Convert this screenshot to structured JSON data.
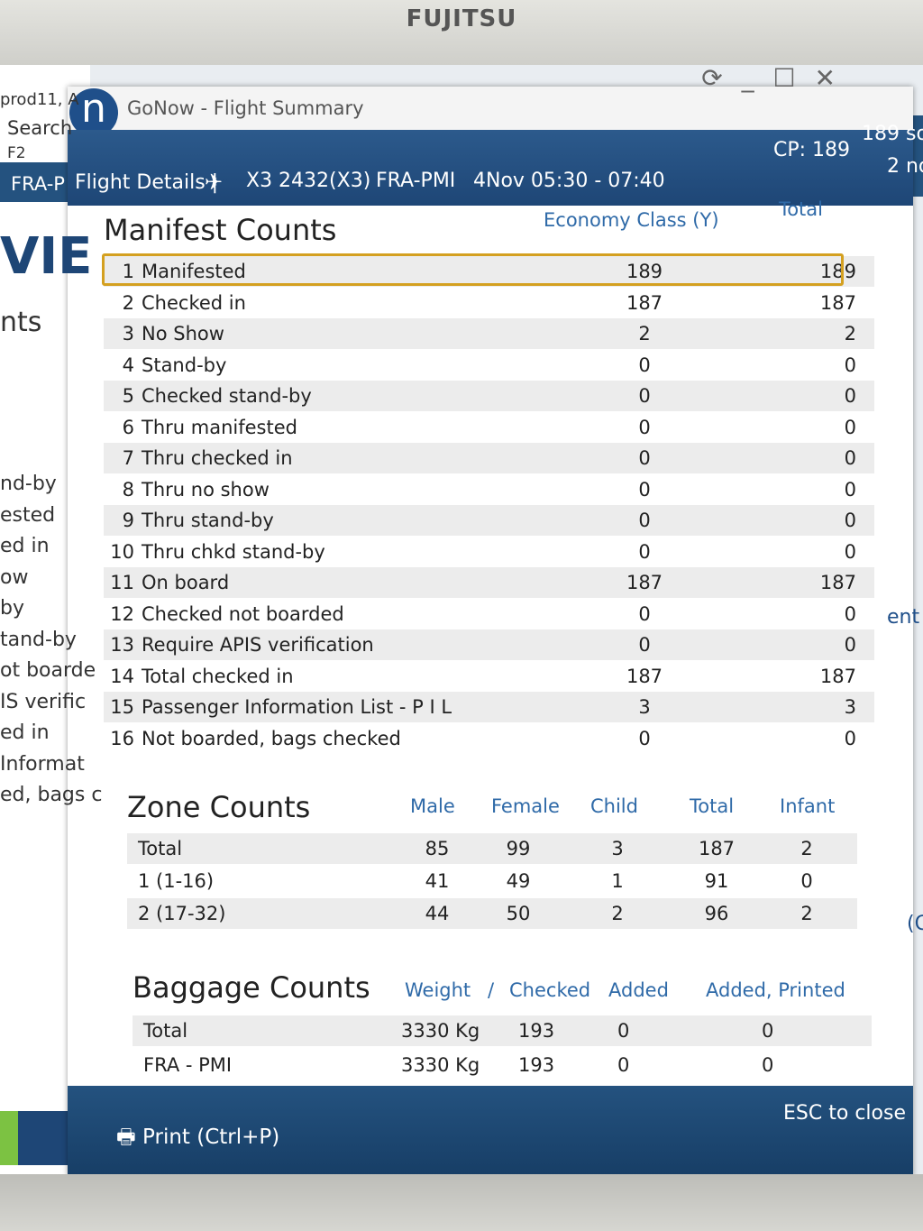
{
  "monitor": {
    "brand": "FUJITSU"
  },
  "background_app": {
    "left_texts": [
      "prod11, A",
      "Search",
      "F2",
      "FRA-P",
      "VIE",
      "nts"
    ],
    "left_list": [
      "nd-by",
      "ested",
      "ed in",
      "ow",
      "by",
      "tand-by",
      "ot boarde",
      "IS verific",
      "ed in",
      "Informat",
      "ed, bags c"
    ],
    "right_texts": [
      "189 so",
      "2 no",
      "ent",
      "(C"
    ]
  },
  "window": {
    "logo": "n",
    "title": "GoNow - Flight Summary",
    "header": {
      "section": "Flight Details |",
      "flight": "X3 2432(X3)",
      "route": "FRA-PMI",
      "time": "4Nov 05:30 - 07:40",
      "cp": "CP: 189"
    },
    "manifest": {
      "title": "Manifest Counts",
      "columns": [
        "Economy Class (Y)",
        "Total"
      ],
      "rows": [
        {
          "no": "1",
          "label": "Manifested",
          "values": [
            189,
            189
          ]
        },
        {
          "no": "2",
          "label": "Checked in",
          "values": [
            187,
            187
          ]
        },
        {
          "no": "3",
          "label": "No Show",
          "values": [
            2,
            2
          ]
        },
        {
          "no": "4",
          "label": "Stand-by",
          "values": [
            0,
            0
          ]
        },
        {
          "no": "5",
          "label": "Checked stand-by",
          "values": [
            0,
            0
          ]
        },
        {
          "no": "6",
          "label": "Thru manifested",
          "values": [
            0,
            0
          ]
        },
        {
          "no": "7",
          "label": "Thru checked in",
          "values": [
            0,
            0
          ]
        },
        {
          "no": "8",
          "label": "Thru no show",
          "values": [
            0,
            0
          ]
        },
        {
          "no": "9",
          "label": "Thru stand-by",
          "values": [
            0,
            0
          ]
        },
        {
          "no": "10",
          "label": "Thru chkd stand-by",
          "values": [
            0,
            0
          ]
        },
        {
          "no": "11",
          "label": "On board",
          "values": [
            187,
            187
          ]
        },
        {
          "no": "12",
          "label": "Checked not boarded",
          "values": [
            0,
            0
          ]
        },
        {
          "no": "13",
          "label": "Require APIS verification",
          "values": [
            0,
            0
          ]
        },
        {
          "no": "14",
          "label": "Total checked in",
          "values": [
            187,
            187
          ]
        },
        {
          "no": "15",
          "label": "Passenger Information List - P I L",
          "values": [
            3,
            3
          ]
        },
        {
          "no": "16",
          "label": "Not boarded, bags checked",
          "values": [
            0,
            0
          ]
        }
      ]
    },
    "zones": {
      "title": "Zone Counts",
      "columns": [
        "Male",
        "Female",
        "Child",
        "Total",
        "Infant"
      ],
      "rows": [
        {
          "label": "Total",
          "values": [
            85,
            99,
            3,
            187,
            2
          ]
        },
        {
          "label": "1 (1-16)",
          "values": [
            41,
            49,
            1,
            91,
            0
          ]
        },
        {
          "label": "2 (17-32)",
          "values": [
            44,
            50,
            2,
            96,
            2
          ]
        }
      ]
    },
    "baggage": {
      "title": "Baggage Counts",
      "columns": [
        "Weight",
        "/",
        "Checked",
        "Added",
        "Added, Printed"
      ],
      "rows": [
        {
          "label": "Total",
          "values": [
            "3330 Kg",
            193,
            0,
            0
          ]
        },
        {
          "label": "FRA - PMI",
          "values": [
            "3330 Kg",
            193,
            0,
            0
          ]
        }
      ]
    },
    "footer": {
      "print": "Print (Ctrl+P)",
      "close": "ESC to close"
    }
  }
}
